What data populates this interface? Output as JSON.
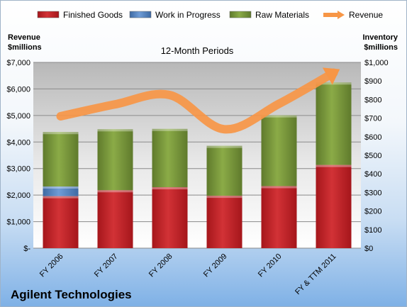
{
  "chart_data": {
    "type": "bar",
    "title": "12-Month Periods",
    "company": "Agilent Technologies",
    "left_axis_label": [
      "Revenue",
      "$millions"
    ],
    "right_axis_label": [
      "Inventory",
      "$millions"
    ],
    "categories": [
      "FY 2006",
      "FY 2007",
      "FY 2008",
      "FY 2009",
      "FY 2010",
      "FY & TTM 2011"
    ],
    "left_ylim": [
      0,
      7000
    ],
    "right_ylim": [
      0,
      1000
    ],
    "left_ticks": [
      "$-",
      "$1,000",
      "$2,000",
      "$3,000",
      "$4,000",
      "$5,000",
      "$6,000",
      "$7,000"
    ],
    "right_ticks": [
      "$0",
      "$100",
      "$200",
      "$300",
      "$400",
      "$500",
      "$600",
      "$700",
      "$800",
      "$900",
      "$1,000"
    ],
    "stacked_bars_axis": "right",
    "series": [
      {
        "name": "Finished Goods",
        "kind": "bar",
        "color": "#c0282c",
        "values": [
          280,
          312,
          328,
          282,
          334,
          448
        ]
      },
      {
        "name": "Work in Progress",
        "kind": "bar",
        "color": "#4f81bd",
        "values": [
          52,
          0,
          0,
          0,
          0,
          0
        ]
      },
      {
        "name": "Raw Materials",
        "kind": "bar",
        "color": "#77933c",
        "values": [
          293,
          328,
          314,
          269,
          381,
          444
        ]
      },
      {
        "name": "Revenue",
        "kind": "line",
        "axis": "left",
        "color": "#f79646",
        "values": [
          4970,
          5420,
          5770,
          4480,
          5440,
          6610
        ]
      }
    ],
    "grid": true,
    "legend": "top"
  }
}
